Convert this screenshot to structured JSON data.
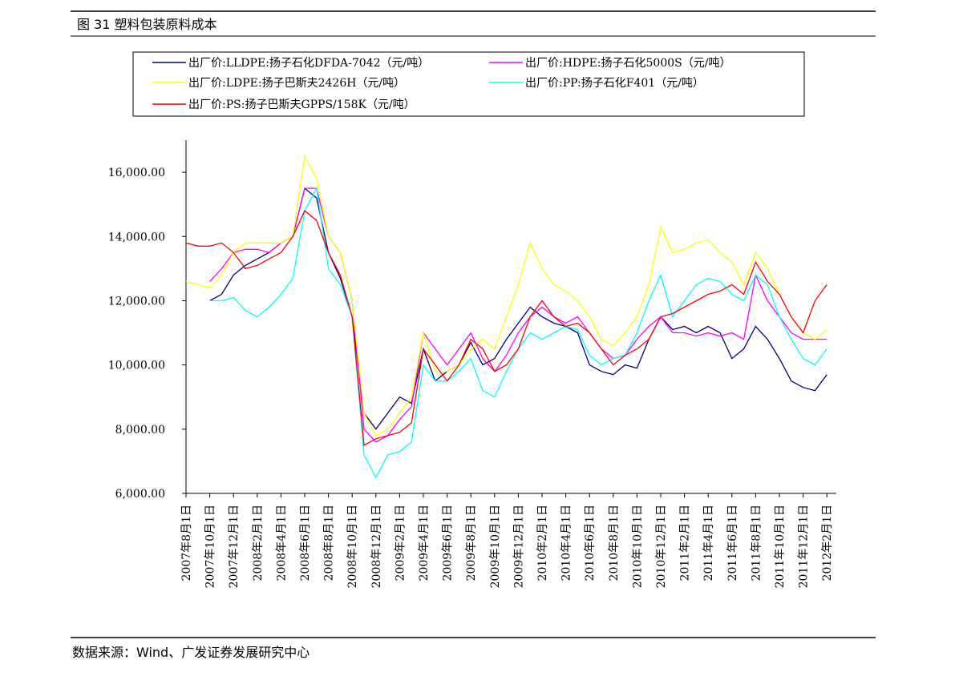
{
  "header": {
    "title": "图 31 塑料包装原料成本"
  },
  "chart_data": {
    "type": "line",
    "categories": [
      "2007年8月1日",
      null,
      "2007年10月1日",
      null,
      "2007年12月1日",
      null,
      "2008年2月1日",
      null,
      "2008年4月1日",
      null,
      "2008年6月1日",
      null,
      "2008年8月1日",
      null,
      "2008年10月1日",
      null,
      "2008年12月1日",
      null,
      "2009年2月1日",
      null,
      "2009年4月1日",
      null,
      "2009年6月1日",
      null,
      "2009年8月1日",
      null,
      "2009年10月1日",
      null,
      "2009年12月1日",
      null,
      "2010年2月1日",
      null,
      "2010年4月1日",
      null,
      "2010年6月1日",
      null,
      "2010年8月1日",
      null,
      "2010年10月1日",
      null,
      "2010年12月1日",
      null,
      "2011年2月1日",
      null,
      "2011年4月1日",
      null,
      "2011年6月1日",
      null,
      "2011年8月1日",
      null,
      "2011年10月1日",
      null,
      "2011年12月1日",
      null,
      "2012年2月1日"
    ],
    "series": [
      {
        "name": "出厂价:LLDPE:扬子石化DFDA-7042（元/吨）",
        "color": "#000080",
        "values": [
          null,
          null,
          12000,
          12200,
          12800,
          13100,
          13300,
          13500,
          13800,
          14000,
          15500,
          15200,
          13500,
          12700,
          11500,
          8500,
          8000,
          8500,
          9000,
          8800,
          10500,
          9500,
          9800,
          10000,
          10700,
          10000,
          10200,
          10800,
          11300,
          11800,
          11500,
          11300,
          11200,
          11000,
          10000,
          9800,
          9700,
          10000,
          9900,
          10800,
          11500,
          11100,
          11200,
          11000,
          11200,
          11000,
          10200,
          10500,
          11200,
          10800,
          10200,
          9500,
          9300,
          9200,
          9700
        ]
      },
      {
        "name": "出厂价:HDPE:扬子石化5000S（元/吨）",
        "color": "#ff00ff",
        "values": [
          null,
          null,
          12600,
          13000,
          13500,
          13600,
          13600,
          13500,
          13800,
          14000,
          15500,
          15500,
          14000,
          13500,
          12000,
          8000,
          7600,
          7800,
          8300,
          8700,
          11000,
          10500,
          10000,
          10500,
          11000,
          10200,
          9800,
          10300,
          11000,
          11500,
          11800,
          11500,
          11300,
          11500,
          11000,
          10500,
          10200,
          10300,
          10800,
          11200,
          11500,
          11000,
          11000,
          10900,
          11000,
          10900,
          11000,
          10800,
          12800,
          12000,
          11500,
          11000,
          10800,
          10800,
          10800
        ]
      },
      {
        "name": "出厂价:LDPE:扬子巴斯夫2426H（元/吨）",
        "color": "#ffff00",
        "values": [
          12600,
          12500,
          12400,
          12800,
          13500,
          13800,
          13800,
          13800,
          13800,
          14000,
          16500,
          15800,
          14000,
          13500,
          12000,
          8500,
          7800,
          8000,
          8500,
          9000,
          11000,
          9800,
          9800,
          10000,
          10500,
          10800,
          10500,
          11500,
          12500,
          13800,
          13000,
          12500,
          12300,
          12000,
          11500,
          10800,
          10600,
          11000,
          11500,
          12500,
          14300,
          13500,
          13600,
          13800,
          13900,
          13500,
          13200,
          12500,
          13500,
          13000,
          12200,
          11500,
          11000,
          10800,
          11100
        ]
      },
      {
        "name": "出厂价:PP:扬子石化F401（元/吨）",
        "color": "#00ffff",
        "values": [
          null,
          null,
          12000,
          12000,
          12100,
          11700,
          11500,
          11800,
          12200,
          12700,
          14800,
          15500,
          13000,
          12500,
          11500,
          7200,
          6500,
          7200,
          7300,
          7600,
          10000,
          9500,
          9500,
          9800,
          10200,
          9200,
          9000,
          9800,
          10500,
          11000,
          10800,
          11000,
          11200,
          11100,
          10300,
          10000,
          10200,
          10300,
          11000,
          12000,
          12800,
          11500,
          12000,
          12500,
          12700,
          12600,
          12200,
          12000,
          12800,
          12500,
          11500,
          10800,
          10200,
          10000,
          10500
        ]
      },
      {
        "name": "出厂价:PS:扬子巴斯夫GPPS/158K（元/吨）",
        "color": "#ff0000",
        "values": [
          13800,
          13700,
          13700,
          13800,
          13500,
          13000,
          13100,
          13300,
          13500,
          14000,
          14800,
          14500,
          13500,
          12800,
          11500,
          7500,
          7700,
          7800,
          7900,
          8200,
          10500,
          10000,
          9500,
          10000,
          10800,
          10500,
          9800,
          10000,
          10500,
          11500,
          12000,
          11500,
          11200,
          11300,
          11000,
          10500,
          10000,
          10300,
          10500,
          10800,
          11500,
          11600,
          11800,
          12000,
          12200,
          12300,
          12500,
          12200,
          13200,
          12600,
          12200,
          11500,
          11000,
          12000,
          12500
        ]
      }
    ],
    "ylim": [
      6000,
      17000
    ],
    "yticks": [
      {
        "value": 6000,
        "label": "6,000.00"
      },
      {
        "value": 8000,
        "label": "8,000.00"
      },
      {
        "value": 10000,
        "label": "10,000.00"
      },
      {
        "value": 12000,
        "label": "12,000.00"
      },
      {
        "value": 14000,
        "label": "14,000.00"
      },
      {
        "value": 16000,
        "label": "16,000.00"
      }
    ]
  },
  "footer": {
    "source": "数据来源：Wind、广发证券发展研究中心"
  }
}
